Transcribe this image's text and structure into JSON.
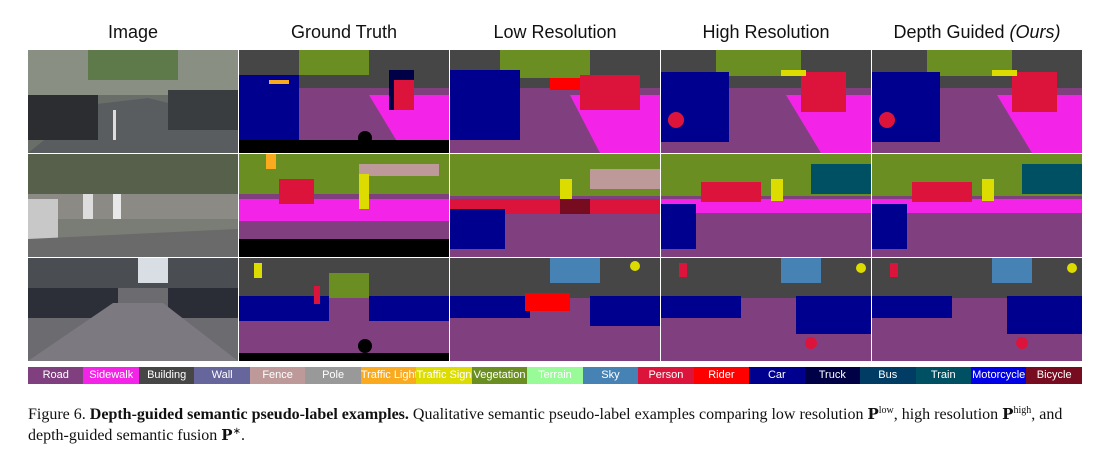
{
  "columns": [
    {
      "label": "Image"
    },
    {
      "label": "Ground Truth"
    },
    {
      "label": "Low Resolution"
    },
    {
      "label": "High Resolution"
    },
    {
      "label": "Depth Guided",
      "suffix": "(Ours)"
    }
  ],
  "legend": [
    {
      "label": "Road",
      "color": "#804080"
    },
    {
      "label": "Sidewalk",
      "color": "#f423e8"
    },
    {
      "label": "Building",
      "color": "#464646"
    },
    {
      "label": "Wall",
      "color": "#66669c"
    },
    {
      "label": "Fence",
      "color": "#be9999"
    },
    {
      "label": "Pole",
      "color": "#999999"
    },
    {
      "label": "Traffic Light",
      "color": "#faaa1e"
    },
    {
      "label": "Traffic Sign",
      "color": "#dcdc00"
    },
    {
      "label": "Vegetation",
      "color": "#6b8e23"
    },
    {
      "label": "Terrain",
      "color": "#98fb98"
    },
    {
      "label": "Sky",
      "color": "#4682b4"
    },
    {
      "label": "Person",
      "color": "#dc143c"
    },
    {
      "label": "Rider",
      "color": "#ff0000"
    },
    {
      "label": "Car",
      "color": "#00008e"
    },
    {
      "label": "Truck",
      "color": "#000046"
    },
    {
      "label": "Bus",
      "color": "#003c64"
    },
    {
      "label": "Train",
      "color": "#005064"
    },
    {
      "label": "Motorcycle",
      "color": "#0000e6"
    },
    {
      "label": "Bicycle",
      "color": "#770b20"
    }
  ],
  "caption": {
    "figure_label": "Figure 6.",
    "title": "Depth-guided semantic pseudo-label examples.",
    "text_1": "Qualitative semantic pseudo-label examples comparing low resolution",
    "sym_low": "P",
    "sup_low": "low",
    "text_2": ",",
    "text_3": "high resolution",
    "sym_high": "P",
    "sup_high": "high",
    "text_4": ", and depth-guided semantic fusion",
    "sym_star": "P",
    "sup_star": "∗",
    "text_5": "."
  }
}
